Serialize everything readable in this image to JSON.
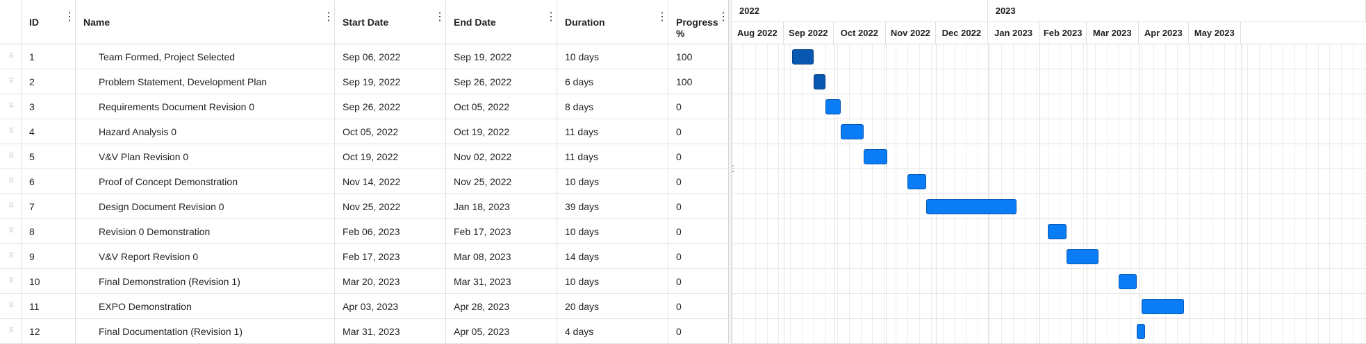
{
  "columns": {
    "id": "ID",
    "name": "Name",
    "start": "Start Date",
    "end": "End Date",
    "duration": "Duration",
    "progress": "Progress %"
  },
  "tasks": [
    {
      "id": "1",
      "name": "Team Formed, Project Selected",
      "start": "Sep 06, 2022",
      "end": "Sep 19, 2022",
      "duration": "10 days",
      "progress": "100",
      "start_date": "2022-09-06",
      "end_date": "2022-09-19",
      "percent_done": 100
    },
    {
      "id": "2",
      "name": "Problem Statement, Development Plan",
      "start": "Sep 19, 2022",
      "end": "Sep 26, 2022",
      "duration": "6 days",
      "progress": "100",
      "start_date": "2022-09-19",
      "end_date": "2022-09-26",
      "percent_done": 100
    },
    {
      "id": "3",
      "name": "Requirements Document Revision 0",
      "start": "Sep 26, 2022",
      "end": "Oct 05, 2022",
      "duration": "8 days",
      "progress": "0",
      "start_date": "2022-09-26",
      "end_date": "2022-10-05",
      "percent_done": 0
    },
    {
      "id": "4",
      "name": "Hazard Analysis 0",
      "start": "Oct 05, 2022",
      "end": "Oct 19, 2022",
      "duration": "11 days",
      "progress": "0",
      "start_date": "2022-10-05",
      "end_date": "2022-10-19",
      "percent_done": 0
    },
    {
      "id": "5",
      "name": "V&V Plan Revision 0",
      "start": "Oct 19, 2022",
      "end": "Nov 02, 2022",
      "duration": "11 days",
      "progress": "0",
      "start_date": "2022-10-19",
      "end_date": "2022-11-02",
      "percent_done": 0
    },
    {
      "id": "6",
      "name": "Proof of Concept Demonstration",
      "start": "Nov 14, 2022",
      "end": "Nov 25, 2022",
      "duration": "10 days",
      "progress": "0",
      "start_date": "2022-11-14",
      "end_date": "2022-11-25",
      "percent_done": 0
    },
    {
      "id": "7",
      "name": "Design Document Revision 0",
      "start": "Nov 25, 2022",
      "end": "Jan 18, 2023",
      "duration": "39 days",
      "progress": "0",
      "start_date": "2022-11-25",
      "end_date": "2023-01-18",
      "percent_done": 0
    },
    {
      "id": "8",
      "name": "Revision 0 Demonstration",
      "start": "Feb 06, 2023",
      "end": "Feb 17, 2023",
      "duration": "10 days",
      "progress": "0",
      "start_date": "2023-02-06",
      "end_date": "2023-02-17",
      "percent_done": 0
    },
    {
      "id": "9",
      "name": "V&V Report Revision 0",
      "start": "Feb 17, 2023",
      "end": "Mar 08, 2023",
      "duration": "14 days",
      "progress": "0",
      "start_date": "2023-02-17",
      "end_date": "2023-03-08",
      "percent_done": 0
    },
    {
      "id": "10",
      "name": "Final Demonstration (Revision 1)",
      "start": "Mar 20, 2023",
      "end": "Mar 31, 2023",
      "duration": "10 days",
      "progress": "0",
      "start_date": "2023-03-20",
      "end_date": "2023-03-31",
      "percent_done": 0
    },
    {
      "id": "11",
      "name": "EXPO Demonstration",
      "start": "Apr 03, 2023",
      "end": "Apr 28, 2023",
      "duration": "20 days",
      "progress": "0",
      "start_date": "2023-04-03",
      "end_date": "2023-04-28",
      "percent_done": 0
    },
    {
      "id": "12",
      "name": "Final Documentation (Revision 1)",
      "start": "Mar 31, 2023",
      "end": "Apr 05, 2023",
      "duration": "4 days",
      "progress": "0",
      "start_date": "2023-03-31",
      "end_date": "2023-04-05",
      "percent_done": 0
    }
  ],
  "timeline": {
    "years": [
      "2022",
      "2023"
    ],
    "months": [
      "Aug 2022",
      "Sep 2022",
      "Oct 2022",
      "Nov 2022",
      "Dec 2022",
      "Jan 2023",
      "Feb 2023",
      "Mar 2023",
      "Apr 2023",
      "May 2023"
    ]
  },
  "colors": {
    "bar": "#0a7cf5",
    "bar_complete": "#0857b0"
  },
  "icons": {
    "column_menu": "vertical-ellipsis-icon",
    "row_drag": "drag-handle-icon",
    "splitter": "splitter-grip-icon"
  }
}
